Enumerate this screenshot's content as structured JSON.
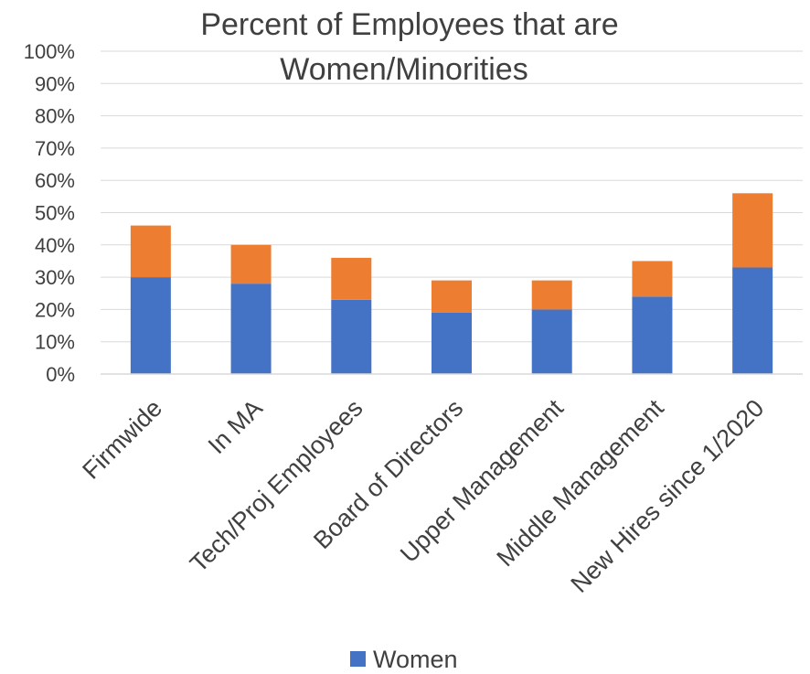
{
  "chart_data": {
    "type": "bar",
    "stacked": true,
    "title_lines": [
      "Percent of Employees that are",
      "Women/Minorities"
    ],
    "categories": [
      "Firmwide",
      "In MA",
      "Tech/Proj Employees",
      "Board of Directors",
      "Upper Management",
      "Middle Management",
      "New Hires since 1/2020"
    ],
    "series": [
      {
        "name": "Women",
        "color": "#4472C4",
        "values": [
          30,
          28,
          23,
          19,
          20,
          24,
          33
        ]
      },
      {
        "name": "",
        "color": "#ED7D31",
        "values": [
          16,
          12,
          13,
          10,
          9,
          11,
          23
        ]
      }
    ],
    "ylim": [
      0,
      100
    ],
    "yticks": [
      "0%",
      "10%",
      "20%",
      "30%",
      "40%",
      "50%",
      "60%",
      "70%",
      "80%",
      "90%",
      "100%"
    ],
    "grid": true,
    "legend": {
      "position": "bottom",
      "entries": [
        "Women"
      ]
    }
  }
}
